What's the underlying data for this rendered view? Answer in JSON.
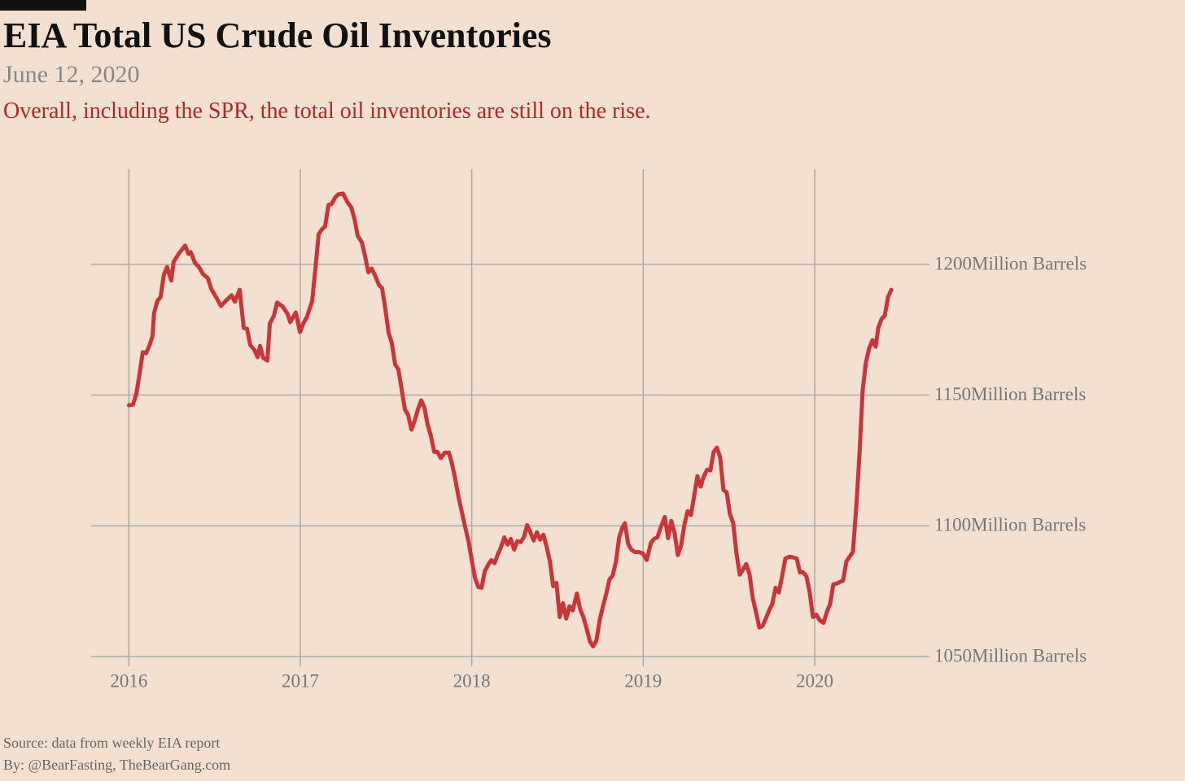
{
  "chart_data": {
    "type": "line",
    "title": "EIA Total US Crude Oil Inventories",
    "subtitle": "June 12, 2020",
    "description": "Overall, including the SPR, the total oil inventories are still on the rise.",
    "source": "Source: data from  weekly EIA report",
    "credit": "By: @BearFasting, TheBearGang.com",
    "color": "#c8363a",
    "grid": true,
    "xlim": [
      2015.78,
      2020.66
    ],
    "xticks": [
      2016,
      2017,
      2018,
      2019,
      2020
    ],
    "ylim": [
      1050,
      1236.4
    ],
    "yticks": [
      {
        "value": 1050,
        "label": "1050Million Barrels"
      },
      {
        "value": 1100,
        "label": "1100Million Barrels"
      },
      {
        "value": 1150,
        "label": "1150Million Barrels"
      },
      {
        "value": 1200,
        "label": "1200Million Barrels"
      }
    ],
    "x": [
      2016.0,
      2016.024,
      2016.043,
      2016.062,
      2016.081,
      2016.1,
      2016.119,
      2016.138,
      2016.147,
      2016.166,
      2016.185,
      2016.204,
      2016.223,
      2016.247,
      2016.261,
      2016.29,
      2016.328,
      2016.347,
      2016.361,
      2016.385,
      2016.409,
      2016.432,
      2016.461,
      2016.48,
      2016.508,
      2016.537,
      2016.565,
      2016.599,
      2016.618,
      2016.646,
      2016.67,
      2016.689,
      2016.708,
      2016.732,
      2016.751,
      2016.765,
      2016.784,
      2016.808,
      2016.822,
      2016.846,
      2016.865,
      2016.898,
      2016.926,
      2016.941,
      2016.974,
      2016.998,
      2017.017,
      2017.04,
      2017.069,
      2017.088,
      2017.107,
      2017.126,
      2017.145,
      2017.164,
      2017.183,
      2017.202,
      2017.221,
      2017.249,
      2017.273,
      2017.297,
      2017.316,
      2017.335,
      2017.359,
      2017.378,
      2017.397,
      2017.416,
      2017.435,
      2017.458,
      2017.477,
      2017.496,
      2017.515,
      2017.534,
      2017.553,
      2017.572,
      2017.591,
      2017.61,
      2017.629,
      2017.648,
      2017.667,
      2017.686,
      2017.705,
      2017.724,
      2017.743,
      2017.762,
      2017.781,
      2017.8,
      2017.819,
      2017.843,
      2017.867,
      2017.886,
      2017.905,
      2017.924,
      2017.943,
      2017.962,
      2017.981,
      2018.0,
      2018.019,
      2018.038,
      2018.057,
      2018.076,
      2018.095,
      2018.114,
      2018.133,
      2018.152,
      2018.171,
      2018.19,
      2018.209,
      2018.228,
      2018.247,
      2018.266,
      2018.285,
      2018.304,
      2018.323,
      2018.342,
      2018.361,
      2018.38,
      2018.399,
      2018.418,
      2018.437,
      2018.456,
      2018.475,
      2018.494,
      2018.513,
      2018.532,
      2018.551,
      2018.57,
      2018.589,
      2018.613,
      2018.632,
      2018.651,
      2018.67,
      2018.689,
      2018.708,
      2018.727,
      2018.746,
      2018.765,
      2018.784,
      2018.803,
      2018.822,
      2018.841,
      2018.86,
      2018.879,
      2018.893,
      2018.912,
      2018.931,
      2018.95,
      2018.974,
      2018.998,
      2019.021,
      2019.045,
      2019.064,
      2019.083,
      2019.102,
      2019.126,
      2019.145,
      2019.164,
      2019.183,
      2019.202,
      2019.221,
      2019.24,
      2019.259,
      2019.278,
      2019.297,
      2019.316,
      2019.335,
      2019.354,
      2019.373,
      2019.392,
      2019.411,
      2019.43,
      2019.449,
      2019.468,
      2019.487,
      2019.506,
      2019.525,
      2019.544,
      2019.563,
      2019.582,
      2019.601,
      2019.62,
      2019.639,
      2019.658,
      2019.677,
      2019.696,
      2019.715,
      2019.734,
      2019.753,
      2019.772,
      2019.791,
      2019.81,
      2019.829,
      2019.853,
      2019.876,
      2019.895,
      2019.914,
      2019.933,
      2019.952,
      2019.971,
      2019.99,
      2020.01,
      2020.029,
      2020.052,
      2020.071,
      2020.09,
      2020.109,
      2020.128,
      2020.147,
      2020.166,
      2020.185,
      2020.204,
      2020.223,
      2020.242,
      2020.261,
      2020.28,
      2020.299,
      2020.318,
      2020.337,
      2020.356,
      2020.371,
      2020.39,
      2020.409,
      2020.428,
      2020.447
    ],
    "values": [
      1146.1,
      1146.4,
      1150.2,
      1158,
      1166.4,
      1166,
      1168.8,
      1172.6,
      1181.3,
      1186,
      1187.5,
      1196,
      1199,
      1193.8,
      1200.9,
      1204,
      1207.2,
      1204,
      1204.7,
      1200.6,
      1199,
      1196.3,
      1194.7,
      1190.7,
      1187.5,
      1184.1,
      1186,
      1188.2,
      1185.7,
      1190.3,
      1175.7,
      1175.4,
      1169.2,
      1167.3,
      1164.5,
      1168.8,
      1164.2,
      1163.2,
      1177.3,
      1180.4,
      1185.4,
      1183.8,
      1181,
      1177.9,
      1181.6,
      1174.1,
      1177.3,
      1180.1,
      1186,
      1198.4,
      1211.5,
      1213.4,
      1214.6,
      1222.7,
      1223.1,
      1225.5,
      1226.8,
      1227.1,
      1224,
      1221.8,
      1217.4,
      1210.9,
      1208.4,
      1203.1,
      1196.9,
      1198.4,
      1195.9,
      1192.2,
      1190.9,
      1182.9,
      1173.8,
      1169.8,
      1161.7,
      1159.8,
      1152.3,
      1144.5,
      1142.4,
      1136.8,
      1140.2,
      1144.5,
      1148,
      1145.2,
      1138.6,
      1134.3,
      1128.3,
      1128.3,
      1125.9,
      1128,
      1128,
      1123.4,
      1117.4,
      1110.6,
      1105,
      1099.4,
      1094.1,
      1086.9,
      1080,
      1076.6,
      1076.3,
      1082.6,
      1085,
      1086.9,
      1085.7,
      1089.1,
      1091.9,
      1095.6,
      1092.8,
      1095,
      1090.9,
      1094.1,
      1093.8,
      1095.6,
      1100.3,
      1097.5,
      1094.4,
      1097.5,
      1094.7,
      1096.6,
      1091.9,
      1086.3,
      1076.9,
      1078.2,
      1065.1,
      1070.4,
      1064.5,
      1069.2,
      1067.6,
      1074.1,
      1068.2,
      1065.1,
      1060.7,
      1055.8,
      1053.9,
      1056.1,
      1063.9,
      1069.2,
      1073.8,
      1079.4,
      1081,
      1086.3,
      1095.6,
      1099.4,
      1101,
      1093.1,
      1090.9,
      1090,
      1090,
      1089.4,
      1086.9,
      1093.5,
      1095,
      1095.6,
      1099.4,
      1103.4,
      1095.3,
      1101.9,
      1097.2,
      1088.8,
      1092.5,
      1100.3,
      1105.6,
      1104.1,
      1111.2,
      1119,
      1115,
      1119,
      1121.5,
      1121.2,
      1128.3,
      1129.9,
      1126.2,
      1113.7,
      1112.8,
      1104.4,
      1101,
      1089.4,
      1081.3,
      1083.2,
      1085.4,
      1081.6,
      1072.3,
      1067,
      1061.1,
      1061.7,
      1064.5,
      1067.6,
      1070.1,
      1076.3,
      1074.5,
      1080.7,
      1087.5,
      1088.2,
      1087.9,
      1087.5,
      1082.2,
      1082.2,
      1080.7,
      1074.5,
      1065.1,
      1066,
      1063.9,
      1062.9,
      1067,
      1070.1,
      1077.6,
      1077.9,
      1078.5,
      1079.1,
      1086.3,
      1088.2,
      1090,
      1106.5,
      1126.8,
      1151.7,
      1162.6,
      1167.9,
      1171,
      1168.5,
      1175.7,
      1179.1,
      1180.4,
      1187.5,
      1190.3
    ]
  }
}
